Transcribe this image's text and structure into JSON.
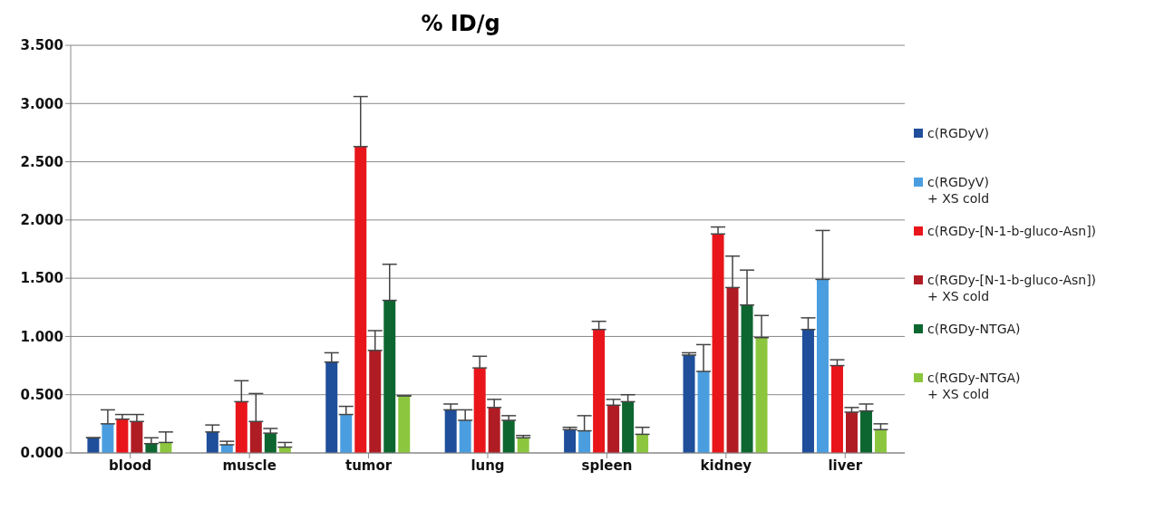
{
  "chart_data": {
    "type": "bar",
    "title": "% ID/g",
    "categories": [
      "blood",
      "muscle",
      "tumor",
      "lung",
      "spleen",
      "kidney",
      "liver"
    ],
    "series": [
      {
        "name": "c(RGDyV)",
        "color": "#1f4e9a",
        "values": [
          0.13,
          0.18,
          0.78,
          0.37,
          0.2,
          0.84,
          1.06
        ],
        "errors": [
          null,
          [
            0.18,
            0.24
          ],
          [
            0.78,
            0.86
          ],
          [
            0.37,
            0.42
          ],
          [
            0.2,
            0.22
          ],
          [
            0.84,
            0.86
          ],
          [
            1.06,
            1.16
          ]
        ]
      },
      {
        "name": "c(RGDyV)\n+ XS cold",
        "color": "#4a9ee0",
        "values": [
          0.25,
          0.07,
          0.33,
          0.28,
          0.19,
          0.7,
          1.49
        ],
        "errors": [
          [
            0.25,
            0.37
          ],
          [
            0.07,
            0.1
          ],
          [
            0.33,
            0.4
          ],
          [
            0.28,
            0.37
          ],
          [
            0.19,
            0.32
          ],
          [
            0.7,
            0.93
          ],
          [
            1.49,
            1.91
          ]
        ]
      },
      {
        "name": "c(RGDy-[N-1-b-gluco-Asn])",
        "color": "#e8161b",
        "values": [
          0.29,
          0.44,
          2.63,
          0.73,
          1.06,
          1.88,
          0.75
        ],
        "errors": [
          [
            0.29,
            0.33
          ],
          [
            0.44,
            0.62
          ],
          [
            2.63,
            3.06
          ],
          [
            0.73,
            0.83
          ],
          [
            1.06,
            1.13
          ],
          [
            1.88,
            1.94
          ],
          [
            0.75,
            0.8
          ]
        ]
      },
      {
        "name": "c(RGDy-[N-1-b-gluco-Asn])\n+ XS cold",
        "color": "#b01c24",
        "values": [
          0.27,
          0.27,
          0.88,
          0.39,
          0.41,
          1.42,
          0.35
        ],
        "errors": [
          [
            0.27,
            0.33
          ],
          [
            0.27,
            0.51
          ],
          [
            0.88,
            1.05
          ],
          [
            0.39,
            0.46
          ],
          [
            0.41,
            0.46
          ],
          [
            1.42,
            1.69
          ],
          [
            0.35,
            0.39
          ]
        ]
      },
      {
        "name": "c(RGDy-NTGA)",
        "color": "#0d6630",
        "values": [
          0.08,
          0.17,
          1.31,
          0.28,
          0.44,
          1.27,
          0.36
        ],
        "errors": [
          [
            0.08,
            0.13
          ],
          [
            0.17,
            0.21
          ],
          [
            1.31,
            1.62
          ],
          [
            0.28,
            0.32
          ],
          [
            0.44,
            0.5
          ],
          [
            1.27,
            1.57
          ],
          [
            0.36,
            0.42
          ]
        ]
      },
      {
        "name": "c(RGDy-NTGA)\n+ XS cold",
        "color": "#8cc63e",
        "values": [
          0.09,
          0.05,
          0.49,
          0.13,
          0.16,
          0.99,
          0.2
        ],
        "errors": [
          [
            0.09,
            0.18
          ],
          [
            0.05,
            0.09
          ],
          null,
          [
            0.13,
            0.15
          ],
          [
            0.16,
            0.22
          ],
          [
            0.99,
            1.18
          ],
          [
            0.2,
            0.25
          ]
        ]
      }
    ],
    "ylim": [
      0,
      3.5
    ],
    "yticks": [
      {
        "value": 0,
        "label": "0.000"
      },
      {
        "value": 0.5,
        "label": "0.500"
      },
      {
        "value": 1,
        "label": "1.000"
      },
      {
        "value": 1.5,
        "label": "1.500"
      },
      {
        "value": 2,
        "label": "2.000"
      },
      {
        "value": 2.5,
        "label": "2.500"
      },
      {
        "value": 3,
        "label": "3.000"
      },
      {
        "value": 3.5,
        "label": "3.500"
      }
    ],
    "grid": "y",
    "legend": "right"
  }
}
